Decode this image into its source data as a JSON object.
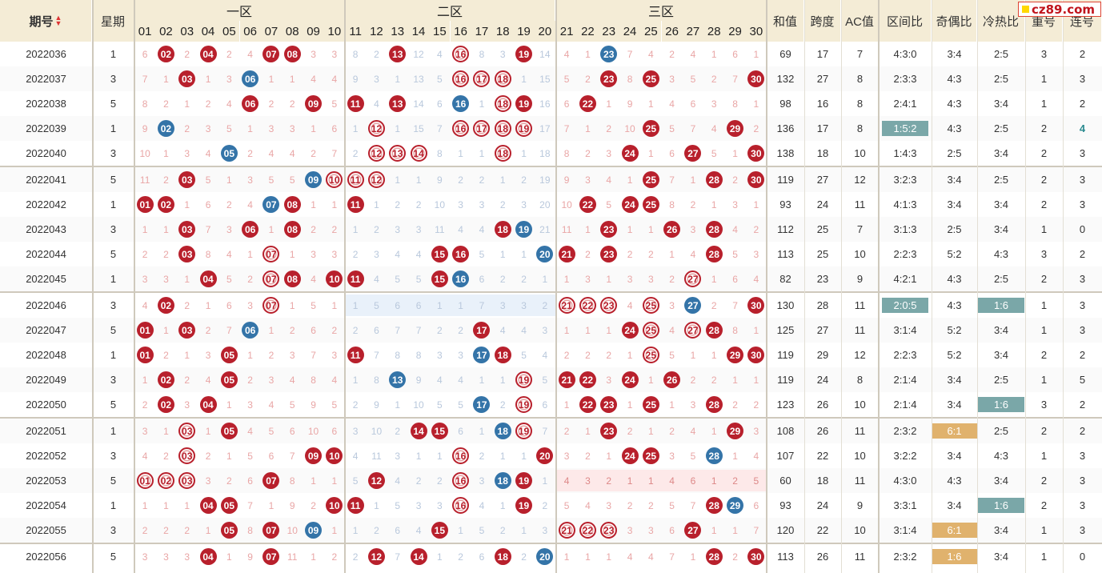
{
  "header": {
    "issue_label": "期号",
    "weekday_label": "星期",
    "zone1_label": "一区",
    "zone2_label": "二区",
    "zone3_label": "三区",
    "numbers": [
      "01",
      "02",
      "03",
      "04",
      "05",
      "06",
      "07",
      "08",
      "09",
      "10",
      "11",
      "12",
      "13",
      "14",
      "15",
      "16",
      "17",
      "18",
      "19",
      "20",
      "21",
      "22",
      "23",
      "24",
      "25",
      "26",
      "27",
      "28",
      "29",
      "30"
    ],
    "sum_label": "和值",
    "span_label": "跨度",
    "ac_label": "AC值",
    "zone_ratio_label": "区间比",
    "odd_even_label": "奇偶比",
    "hot_cold_label": "冷热比",
    "repeat_label": "重号",
    "consecutive_label": "连号"
  },
  "logo": {
    "text": "cz89.com"
  },
  "colors": {
    "red_ball": "#b8202c",
    "blue_ball": "#3474a8",
    "teal_box": "#7aa7a8",
    "orange_box": "#e0b26d",
    "header_bg": "#f4ecd6"
  },
  "rows": [
    {
      "issue": "2022036",
      "week": "1",
      "cells": [
        "6",
        "R02",
        "2",
        "R04",
        "2",
        "4",
        "R07",
        "R08",
        "3",
        "3",
        "8",
        "2",
        "R13",
        "12",
        "4",
        "O16",
        "8",
        "3",
        "R19",
        "14",
        "4",
        "1",
        "B23",
        "7",
        "4",
        "2",
        "4",
        "1",
        "6",
        "1"
      ],
      "sum": "69",
      "span": "17",
      "ac": "7",
      "zone": "4:3:0",
      "zone_style": "",
      "oe": "3:4",
      "oe_style": "",
      "hc": "2:5",
      "hc_style": "",
      "rep": "3",
      "con": "2",
      "con_style": ""
    },
    {
      "issue": "2022037",
      "week": "3",
      "cells": [
        "7",
        "1",
        "R03",
        "1",
        "3",
        "B06",
        "1",
        "1",
        "4",
        "4",
        "9",
        "3",
        "1",
        "13",
        "5",
        "O16",
        "O17",
        "O18",
        "1",
        "15",
        "5",
        "2",
        "R23",
        "8",
        "R25",
        "3",
        "5",
        "2",
        "7",
        "R30"
      ],
      "sum": "132",
      "span": "27",
      "ac": "8",
      "zone": "2:3:3",
      "zone_style": "",
      "oe": "4:3",
      "oe_style": "",
      "hc": "2:5",
      "hc_style": "",
      "rep": "1",
      "con": "3",
      "con_style": ""
    },
    {
      "issue": "2022038",
      "week": "5",
      "cells": [
        "8",
        "2",
        "1",
        "2",
        "4",
        "R06",
        "2",
        "2",
        "R09",
        "5",
        "R11",
        "4",
        "R13",
        "14",
        "6",
        "B16",
        "1",
        "O18",
        "R19",
        "16",
        "6",
        "R22",
        "1",
        "9",
        "1",
        "4",
        "6",
        "3",
        "8",
        "1"
      ],
      "sum": "98",
      "span": "16",
      "ac": "8",
      "zone": "2:4:1",
      "zone_style": "",
      "oe": "4:3",
      "oe_style": "",
      "hc": "3:4",
      "hc_style": "",
      "rep": "1",
      "con": "2",
      "con_style": ""
    },
    {
      "issue": "2022039",
      "week": "1",
      "cells": [
        "9",
        "B02",
        "2",
        "3",
        "5",
        "1",
        "3",
        "3",
        "1",
        "6",
        "1",
        "O12",
        "1",
        "15",
        "7",
        "O16",
        "O17",
        "O18",
        "O19",
        "17",
        "7",
        "1",
        "2",
        "10",
        "R25",
        "5",
        "7",
        "4",
        "R29",
        "2"
      ],
      "sum": "136",
      "span": "17",
      "ac": "8",
      "zone": "1:5:2",
      "zone_style": "teal",
      "oe": "4:3",
      "oe_style": "",
      "hc": "2:5",
      "hc_style": "",
      "rep": "2",
      "con": "4",
      "con_style": "teal-text"
    },
    {
      "issue": "2022040",
      "week": "3",
      "cells": [
        "10",
        "1",
        "3",
        "4",
        "B05",
        "2",
        "4",
        "4",
        "2",
        "7",
        "2",
        "O12",
        "O13",
        "O14",
        "8",
        "1",
        "1",
        "O18",
        "1",
        "18",
        "8",
        "2",
        "3",
        "R24",
        "1",
        "6",
        "R27",
        "5",
        "1",
        "R30"
      ],
      "sum": "138",
      "span": "18",
      "ac": "10",
      "zone": "1:4:3",
      "zone_style": "",
      "oe": "2:5",
      "oe_style": "",
      "hc": "3:4",
      "hc_style": "",
      "rep": "2",
      "con": "3",
      "con_style": ""
    },
    {
      "issue": "2022041",
      "week": "5",
      "cells": [
        "11",
        "2",
        "R03",
        "5",
        "1",
        "3",
        "5",
        "5",
        "B09",
        "O10",
        "O11",
        "O12",
        "1",
        "1",
        "9",
        "2",
        "2",
        "1",
        "2",
        "19",
        "9",
        "3",
        "4",
        "1",
        "R25",
        "7",
        "1",
        "R28",
        "2",
        "R30"
      ],
      "sum": "119",
      "span": "27",
      "ac": "12",
      "zone": "3:2:3",
      "zone_style": "",
      "oe": "3:4",
      "oe_style": "",
      "hc": "2:5",
      "hc_style": "",
      "rep": "2",
      "con": "3",
      "con_style": ""
    },
    {
      "issue": "2022042",
      "week": "1",
      "cells": [
        "R01",
        "R02",
        "1",
        "6",
        "2",
        "4",
        "B07",
        "R08",
        "1",
        "1",
        "R11",
        "1",
        "2",
        "2",
        "10",
        "3",
        "3",
        "2",
        "3",
        "20",
        "10",
        "R22",
        "5",
        "R24",
        "R25",
        "8",
        "2",
        "1",
        "3",
        "1"
      ],
      "sum": "93",
      "span": "24",
      "ac": "11",
      "zone": "4:1:3",
      "zone_style": "",
      "oe": "3:4",
      "oe_style": "",
      "hc": "3:4",
      "hc_style": "",
      "rep": "2",
      "con": "3",
      "con_style": ""
    },
    {
      "issue": "2022043",
      "week": "3",
      "cells": [
        "1",
        "1",
        "R03",
        "7",
        "3",
        "R06",
        "1",
        "R08",
        "2",
        "2",
        "1",
        "2",
        "3",
        "3",
        "11",
        "4",
        "4",
        "R18",
        "B19",
        "21",
        "11",
        "1",
        "R23",
        "1",
        "1",
        "R26",
        "3",
        "R28",
        "4",
        "2"
      ],
      "sum": "112",
      "span": "25",
      "ac": "7",
      "zone": "3:1:3",
      "zone_style": "",
      "oe": "2:5",
      "oe_style": "",
      "hc": "3:4",
      "hc_style": "",
      "rep": "1",
      "con": "0",
      "con_style": ""
    },
    {
      "issue": "2022044",
      "week": "5",
      "cells": [
        "2",
        "2",
        "R03",
        "8",
        "4",
        "1",
        "O07",
        "1",
        "3",
        "3",
        "2",
        "3",
        "4",
        "4",
        "R15",
        "R16",
        "5",
        "1",
        "1",
        "B20",
        "R21",
        "2",
        "R23",
        "2",
        "2",
        "1",
        "4",
        "R28",
        "5",
        "3"
      ],
      "sum": "113",
      "span": "25",
      "ac": "10",
      "zone": "2:2:3",
      "zone_style": "",
      "oe": "5:2",
      "oe_style": "",
      "hc": "4:3",
      "hc_style": "",
      "rep": "3",
      "con": "2",
      "con_style": ""
    },
    {
      "issue": "2022045",
      "week": "1",
      "cells": [
        "3",
        "3",
        "1",
        "R04",
        "5",
        "2",
        "O07",
        "R08",
        "4",
        "R10",
        "R11",
        "4",
        "5",
        "5",
        "R15",
        "B16",
        "6",
        "2",
        "2",
        "1",
        "1",
        "3",
        "1",
        "3",
        "3",
        "2",
        "O27",
        "1",
        "6",
        "4"
      ],
      "sum": "82",
      "span": "23",
      "ac": "9",
      "zone": "4:2:1",
      "zone_style": "",
      "oe": "4:3",
      "oe_style": "",
      "hc": "2:5",
      "hc_style": "",
      "rep": "2",
      "con": "3",
      "con_style": ""
    },
    {
      "issue": "2022046",
      "week": "3",
      "cells": [
        "4",
        "R02",
        "2",
        "1",
        "6",
        "3",
        "O07",
        "1",
        "5",
        "1",
        "1",
        "5",
        "6",
        "6",
        "1",
        "1",
        "7",
        "3",
        "3",
        "2",
        "O21",
        "O22",
        "O23",
        "4",
        "O25",
        "3",
        "B27",
        "2",
        "7",
        "R30"
      ],
      "sum": "130",
      "span": "28",
      "ac": "11",
      "zone": "2:0:5",
      "zone_style": "teal",
      "oe": "4:3",
      "oe_style": "",
      "hc": "1:6",
      "hc_style": "teal",
      "rep": "1",
      "con": "3",
      "con_style": "",
      "zone2_bg": "blue"
    },
    {
      "issue": "2022047",
      "week": "5",
      "cells": [
        "R01",
        "1",
        "R03",
        "2",
        "7",
        "B06",
        "1",
        "2",
        "6",
        "2",
        "2",
        "6",
        "7",
        "7",
        "2",
        "2",
        "R17",
        "4",
        "4",
        "3",
        "1",
        "1",
        "1",
        "R24",
        "O25",
        "4",
        "O27",
        "R28",
        "8",
        "1"
      ],
      "sum": "125",
      "span": "27",
      "ac": "11",
      "zone": "3:1:4",
      "zone_style": "",
      "oe": "5:2",
      "oe_style": "",
      "hc": "3:4",
      "hc_style": "",
      "rep": "1",
      "con": "3",
      "con_style": ""
    },
    {
      "issue": "2022048",
      "week": "1",
      "cells": [
        "R01",
        "2",
        "1",
        "3",
        "R05",
        "1",
        "2",
        "3",
        "7",
        "3",
        "R11",
        "7",
        "8",
        "8",
        "3",
        "3",
        "B17",
        "R18",
        "5",
        "4",
        "2",
        "2",
        "2",
        "1",
        "O25",
        "5",
        "1",
        "1",
        "R29",
        "R30"
      ],
      "sum": "119",
      "span": "29",
      "ac": "12",
      "zone": "2:2:3",
      "zone_style": "",
      "oe": "5:2",
      "oe_style": "",
      "hc": "3:4",
      "hc_style": "",
      "rep": "2",
      "con": "2",
      "con_style": ""
    },
    {
      "issue": "2022049",
      "week": "3",
      "cells": [
        "1",
        "R02",
        "2",
        "4",
        "R05",
        "2",
        "3",
        "4",
        "8",
        "4",
        "1",
        "8",
        "B13",
        "9",
        "4",
        "4",
        "1",
        "1",
        "O19",
        "5",
        "R21",
        "R22",
        "3",
        "R24",
        "1",
        "R26",
        "2",
        "2",
        "1",
        "1"
      ],
      "sum": "119",
      "span": "24",
      "ac": "8",
      "zone": "2:1:4",
      "zone_style": "",
      "oe": "3:4",
      "oe_style": "",
      "hc": "2:5",
      "hc_style": "",
      "rep": "1",
      "con": "5",
      "con_style": ""
    },
    {
      "issue": "2022050",
      "week": "5",
      "cells": [
        "2",
        "R02",
        "3",
        "R04",
        "1",
        "3",
        "4",
        "5",
        "9",
        "5",
        "2",
        "9",
        "1",
        "10",
        "5",
        "5",
        "B17",
        "2",
        "O19",
        "6",
        "1",
        "R22",
        "R23",
        "1",
        "R25",
        "1",
        "3",
        "R28",
        "2",
        "2"
      ],
      "sum": "123",
      "span": "26",
      "ac": "10",
      "zone": "2:1:4",
      "zone_style": "",
      "oe": "3:4",
      "oe_style": "",
      "hc": "1:6",
      "hc_style": "teal",
      "rep": "3",
      "con": "2",
      "con_style": ""
    },
    {
      "issue": "2022051",
      "week": "1",
      "cells": [
        "3",
        "1",
        "O03",
        "1",
        "R05",
        "4",
        "5",
        "6",
        "10",
        "6",
        "3",
        "10",
        "2",
        "R14",
        "R15",
        "6",
        "1",
        "B18",
        "O19",
        "7",
        "2",
        "1",
        "R23",
        "2",
        "1",
        "2",
        "4",
        "1",
        "R29",
        "3"
      ],
      "sum": "108",
      "span": "26",
      "ac": "11",
      "zone": "2:3:2",
      "zone_style": "",
      "oe": "6:1",
      "oe_style": "orange",
      "hc": "2:5",
      "hc_style": "",
      "rep": "2",
      "con": "2",
      "con_style": ""
    },
    {
      "issue": "2022052",
      "week": "3",
      "cells": [
        "4",
        "2",
        "O03",
        "2",
        "1",
        "5",
        "6",
        "7",
        "R09",
        "R10",
        "4",
        "11",
        "3",
        "1",
        "1",
        "O16",
        "2",
        "1",
        "1",
        "R20",
        "3",
        "2",
        "1",
        "R24",
        "R25",
        "3",
        "5",
        "B28",
        "1",
        "4"
      ],
      "sum": "107",
      "span": "22",
      "ac": "10",
      "zone": "3:2:2",
      "zone_style": "",
      "oe": "3:4",
      "oe_style": "",
      "hc": "4:3",
      "hc_style": "",
      "rep": "1",
      "con": "3",
      "con_style": ""
    },
    {
      "issue": "2022053",
      "week": "5",
      "cells": [
        "O01",
        "O02",
        "O03",
        "3",
        "2",
        "6",
        "R07",
        "8",
        "1",
        "1",
        "5",
        "R12",
        "4",
        "2",
        "2",
        "O16",
        "3",
        "B18",
        "R19",
        "1",
        "4",
        "3",
        "2",
        "1",
        "1",
        "4",
        "6",
        "1",
        "2",
        "5"
      ],
      "sum": "60",
      "span": "18",
      "ac": "11",
      "zone": "4:3:0",
      "zone_style": "",
      "oe": "4:3",
      "oe_style": "",
      "hc": "3:4",
      "hc_style": "",
      "rep": "2",
      "con": "3",
      "con_style": "",
      "zone3_bg": "pink"
    },
    {
      "issue": "2022054",
      "week": "1",
      "cells": [
        "1",
        "1",
        "1",
        "R04",
        "R05",
        "7",
        "1",
        "9",
        "2",
        "R10",
        "R11",
        "1",
        "5",
        "3",
        "3",
        "O16",
        "4",
        "1",
        "R19",
        "2",
        "5",
        "4",
        "3",
        "2",
        "2",
        "5",
        "7",
        "R28",
        "B29",
        "6"
      ],
      "sum": "93",
      "span": "24",
      "ac": "9",
      "zone": "3:3:1",
      "zone_style": "",
      "oe": "3:4",
      "oe_style": "",
      "hc": "1:6",
      "hc_style": "teal",
      "rep": "2",
      "con": "3",
      "con_style": ""
    },
    {
      "issue": "2022055",
      "week": "3",
      "cells": [
        "2",
        "2",
        "2",
        "1",
        "R05",
        "8",
        "R07",
        "10",
        "B09",
        "1",
        "1",
        "2",
        "6",
        "4",
        "R15",
        "1",
        "5",
        "2",
        "1",
        "3",
        "O21",
        "O22",
        "O23",
        "3",
        "3",
        "6",
        "R27",
        "1",
        "1",
        "7"
      ],
      "sum": "120",
      "span": "22",
      "ac": "10",
      "zone": "3:1:4",
      "zone_style": "",
      "oe": "6:1",
      "oe_style": "orange",
      "hc": "3:4",
      "hc_style": "",
      "rep": "1",
      "con": "3",
      "con_style": ""
    },
    {
      "issue": "2022056",
      "week": "5",
      "cells": [
        "3",
        "3",
        "3",
        "R04",
        "1",
        "9",
        "R07",
        "11",
        "1",
        "2",
        "2",
        "R12",
        "7",
        "R14",
        "1",
        "2",
        "6",
        "R18",
        "2",
        "B20",
        "1",
        "1",
        "1",
        "4",
        "4",
        "7",
        "1",
        "R28",
        "2",
        "R30"
      ],
      "sum": "113",
      "span": "26",
      "ac": "11",
      "zone": "2:3:2",
      "zone_style": "",
      "oe": "1:6",
      "oe_style": "orange",
      "hc": "3:4",
      "hc_style": "",
      "rep": "1",
      "con": "0",
      "con_style": ""
    }
  ]
}
